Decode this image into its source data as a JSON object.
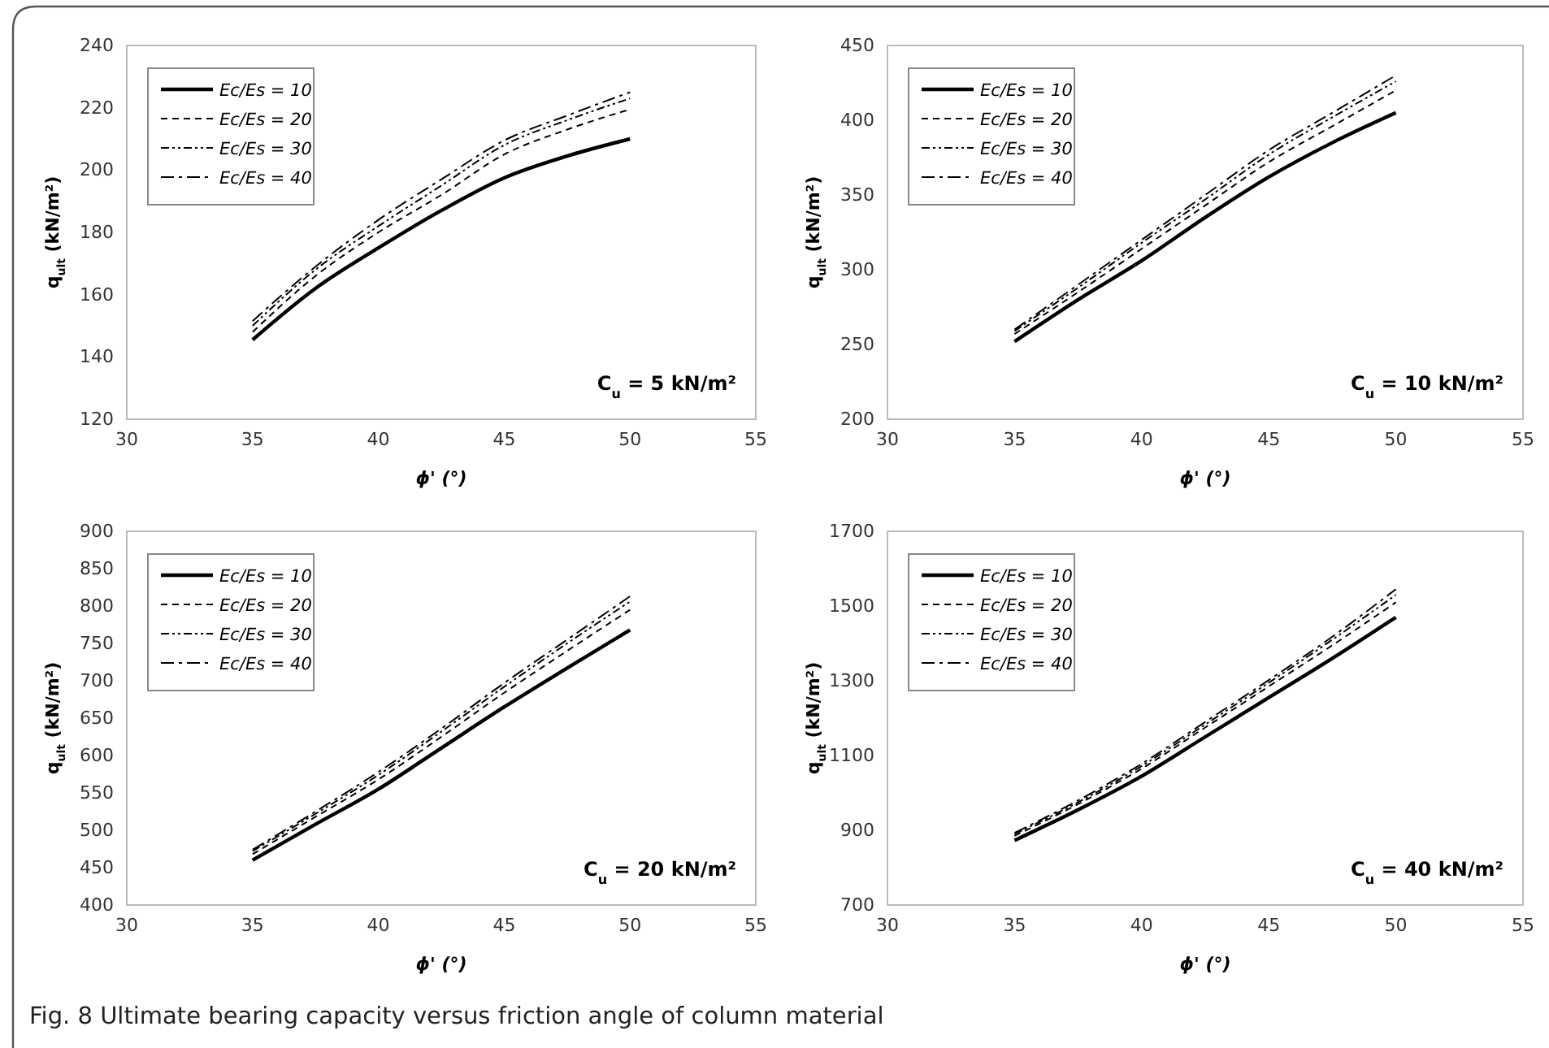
{
  "chart_data": [
    {
      "type": "line",
      "xlabel": "ϕ' (°)",
      "ylabel": "q$_{ult}$ (kN/m²)",
      "xlim": [
        30,
        55
      ],
      "xticks": [
        30,
        35,
        40,
        45,
        50,
        55
      ],
      "ylim": [
        120,
        240
      ],
      "yticks": [
        120,
        140,
        160,
        180,
        200,
        220,
        240
      ],
      "legend": "top left",
      "grid": false,
      "marker": "none",
      "x": [
        35,
        37.5,
        40,
        42.5,
        45,
        47.5,
        50
      ],
      "series": [
        {
          "name": "Ec/Es = 10",
          "color": "#000000",
          "line_style": "solid",
          "values": [
            145.5,
            162,
            175,
            187,
            197.5,
            204.5,
            210
          ]
        },
        {
          "name": "Ec/Es = 20",
          "color": "#000000",
          "line_style": "dashed",
          "values": [
            148,
            166,
            180,
            192,
            205,
            213,
            219.5
          ]
        },
        {
          "name": "Ec/Es = 30",
          "color": "#000000",
          "line_style": "dotted",
          "values": [
            150,
            168,
            182,
            195,
            208,
            216,
            223
          ]
        },
        {
          "name": "Ec/Es = 40",
          "color": "#000000",
          "line_style": "dashdot",
          "values": [
            151.5,
            169,
            184,
            197,
            209.5,
            217.5,
            225
          ]
        }
      ],
      "annotations": [
        "C$_{u}$ = 5 kN/m²"
      ]
    },
    {
      "type": "line",
      "xlabel": "ϕ' (°)",
      "ylabel": "q$_{ult}$ (kN/m²)",
      "xlim": [
        30,
        55
      ],
      "xticks": [
        30,
        35,
        40,
        45,
        50,
        55
      ],
      "ylim": [
        200,
        450
      ],
      "yticks": [
        200,
        250,
        300,
        350,
        400,
        450
      ],
      "legend": "top left",
      "grid": false,
      "marker": "none",
      "x": [
        35,
        37.5,
        40,
        42.5,
        45,
        47.5,
        50
      ],
      "series": [
        {
          "name": "Ec/Es = 10",
          "color": "#000000",
          "line_style": "solid",
          "values": [
            252,
            280,
            306,
            335,
            362,
            385,
            405
          ]
        },
        {
          "name": "Ec/Es = 20",
          "color": "#000000",
          "line_style": "dashed",
          "values": [
            257,
            285,
            314,
            343,
            372,
            396,
            420
          ]
        },
        {
          "name": "Ec/Es = 30",
          "color": "#000000",
          "line_style": "dotted",
          "values": [
            259,
            288,
            318,
            347,
            377,
            402,
            426
          ]
        },
        {
          "name": "Ec/Es = 40",
          "color": "#000000",
          "line_style": "dashdot",
          "values": [
            260,
            290,
            320,
            350,
            380,
            405,
            430
          ]
        }
      ],
      "annotations": [
        "C$_{u}$ = 10 kN/m²"
      ]
    },
    {
      "type": "line",
      "xlabel": "ϕ' (°)",
      "ylabel": "q$_{ult}$ (kN/m²)",
      "xlim": [
        30,
        55
      ],
      "xticks": [
        30,
        35,
        40,
        45,
        50,
        55
      ],
      "ylim": [
        400,
        900
      ],
      "yticks": [
        400,
        450,
        500,
        550,
        600,
        650,
        700,
        750,
        800,
        850,
        900
      ],
      "legend": "top left",
      "grid": false,
      "marker": "none",
      "x": [
        35,
        37.5,
        40,
        42.5,
        45,
        47.5,
        50
      ],
      "series": [
        {
          "name": "Ec/Es = 10",
          "color": "#000000",
          "line_style": "solid",
          "values": [
            460,
            508,
            555,
            610,
            665,
            717,
            768
          ]
        },
        {
          "name": "Ec/Es = 20",
          "color": "#000000",
          "line_style": "dashed",
          "values": [
            468,
            518,
            568,
            625,
            684,
            740,
            795
          ]
        },
        {
          "name": "Ec/Es = 30",
          "color": "#000000",
          "line_style": "dotted",
          "values": [
            472,
            522,
            574,
            632,
            692,
            750,
            806
          ]
        },
        {
          "name": "Ec/Es = 40",
          "color": "#000000",
          "line_style": "dashdot",
          "values": [
            474,
            525,
            578,
            636,
            697,
            755,
            813
          ]
        }
      ],
      "annotations": [
        "C$_{u}$ = 20 kN/m²",
        "Fig. 8  Ultimate bearing capacity versus friction angle of column material"
      ]
    },
    {
      "type": "line",
      "xlabel": "ϕ' (°)",
      "ylabel": "q$_{ult}$ (kN/m²)",
      "xlim": [
        30,
        55
      ],
      "xticks": [
        30,
        35,
        40,
        45,
        50,
        55
      ],
      "ylim": [
        700,
        1700
      ],
      "yticks": [
        700,
        900,
        1100,
        1300,
        1500,
        1700
      ],
      "legend": "top left",
      "grid": false,
      "marker": "none",
      "x": [
        35,
        37.5,
        40,
        42.5,
        45,
        47.5,
        50
      ],
      "series": [
        {
          "name": "Ec/Es = 10",
          "color": "#000000",
          "line_style": "solid",
          "values": [
            873,
            955,
            1045,
            1150,
            1255,
            1360,
            1470
          ]
        },
        {
          "name": "Ec/Es = 20",
          "color": "#000000",
          "line_style": "dashed",
          "values": [
            885,
            970,
            1065,
            1175,
            1285,
            1395,
            1510
          ]
        },
        {
          "name": "Ec/Es = 30",
          "color": "#000000",
          "line_style": "dotted",
          "values": [
            890,
            975,
            1072,
            1183,
            1295,
            1410,
            1530
          ]
        },
        {
          "name": "Ec/Es = 40",
          "color": "#000000",
          "line_style": "dashdot",
          "values": [
            893,
            980,
            1078,
            1190,
            1302,
            1418,
            1545
          ]
        }
      ],
      "annotations": [
        "C$_{u}$ = 40 kN/m²"
      ]
    }
  ]
}
